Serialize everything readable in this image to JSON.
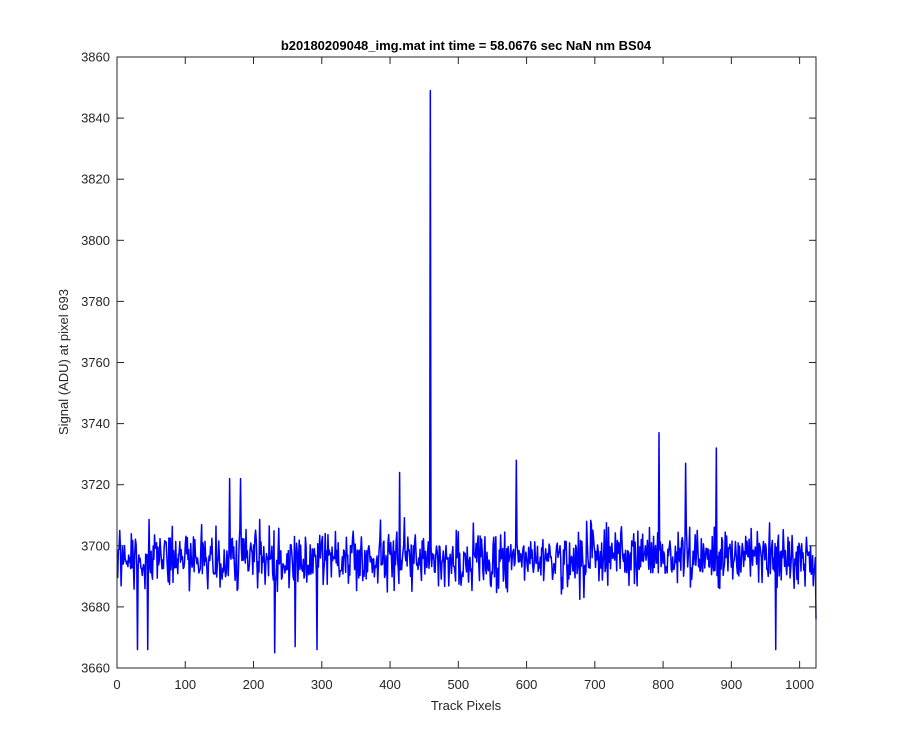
{
  "chart_data": {
    "type": "line",
    "title": "b20180209048_img.mat int time = 58.0676 sec  NaN nm BS04",
    "xlabel": "Track Pixels",
    "ylabel": "Signal (ADU) at pixel 693",
    "xlim": [
      0,
      1024
    ],
    "ylim": [
      3660,
      3860
    ],
    "xticks": [
      0,
      100,
      200,
      300,
      400,
      500,
      600,
      700,
      800,
      900,
      1000
    ],
    "yticks": [
      3660,
      3680,
      3700,
      3720,
      3740,
      3760,
      3780,
      3800,
      3820,
      3840,
      3860
    ],
    "grid": false,
    "line_color": "#0000ff",
    "series": [
      {
        "x_start": 1,
        "x_step": 1,
        "n_points": 1024,
        "baseline": 3696,
        "noise_amplitude": 14,
        "features": [
          {
            "x": 30,
            "y": 3666
          },
          {
            "x": 45,
            "y": 3666
          },
          {
            "x": 165,
            "y": 3722
          },
          {
            "x": 181,
            "y": 3722
          },
          {
            "x": 231,
            "y": 3665
          },
          {
            "x": 261,
            "y": 3667
          },
          {
            "x": 293,
            "y": 3666
          },
          {
            "x": 414,
            "y": 3724
          },
          {
            "x": 430,
            "y": 3690
          },
          {
            "x": 459,
            "y": 3849
          },
          {
            "x": 460,
            "y": 3700
          },
          {
            "x": 585,
            "y": 3728
          },
          {
            "x": 794,
            "y": 3737
          },
          {
            "x": 833,
            "y": 3727
          },
          {
            "x": 878,
            "y": 3732
          },
          {
            "x": 965,
            "y": 3666
          },
          {
            "x": 1024,
            "y": 3676
          }
        ]
      }
    ]
  }
}
